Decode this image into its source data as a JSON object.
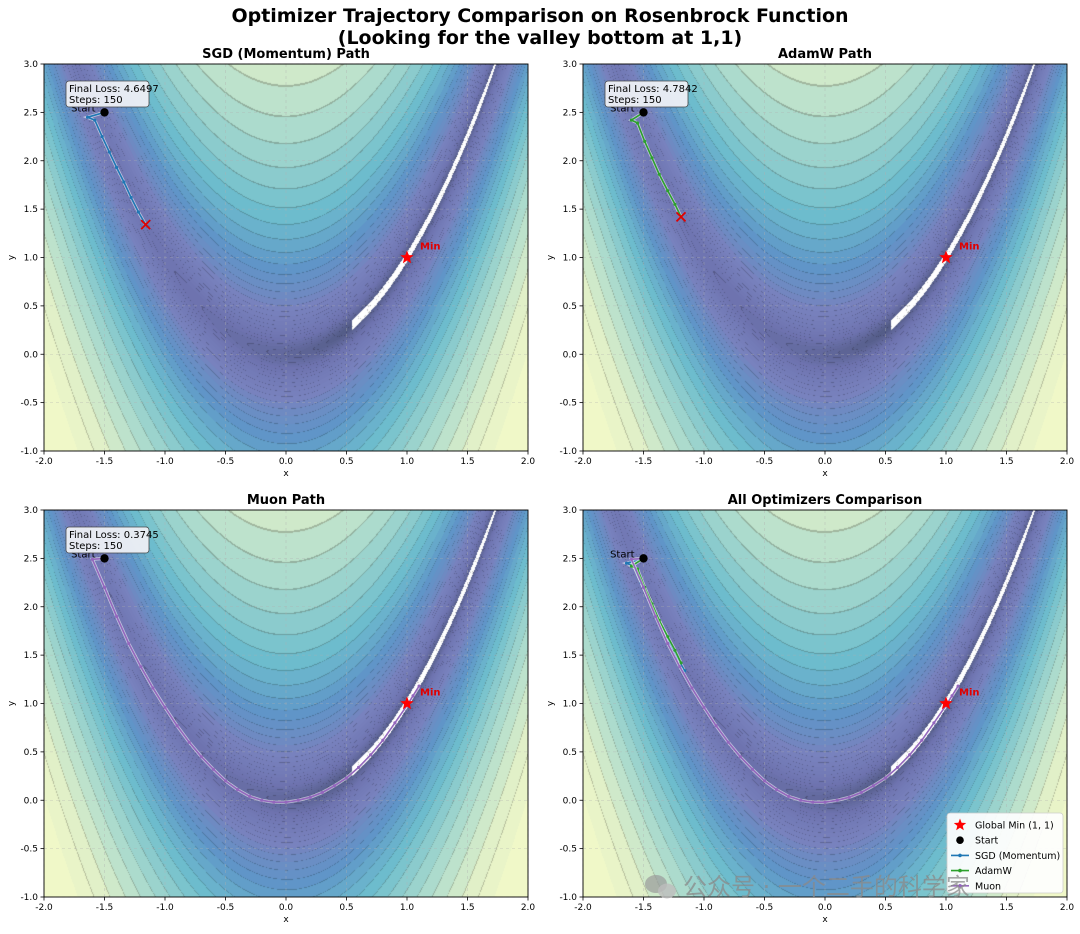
{
  "chart_data": {
    "type": "contour",
    "title_line1": "Optimizer Trajectory Comparison on Rosenbrock Function",
    "title_line2": "(Looking for the valley bottom at 1,1)",
    "function": "Rosenbrock",
    "xlim": [
      -2.0,
      2.0
    ],
    "ylim": [
      -1.0,
      3.0
    ],
    "x_ticks": [
      "-2.0",
      "-1.5",
      "-1.0",
      "-0.5",
      "0.0",
      "0.5",
      "1.0",
      "1.5",
      "2.0"
    ],
    "y_ticks": [
      "-1.0",
      "-0.5",
      "0.0",
      "0.5",
      "1.0",
      "1.5",
      "2.0",
      "2.5",
      "3.0"
    ],
    "xlabel": "x",
    "ylabel": "y",
    "grid": true,
    "start": {
      "x": -1.5,
      "y": 2.5,
      "label": "Start"
    },
    "global_min": {
      "x": 1.0,
      "y": 1.0,
      "label": "Min"
    },
    "panels": [
      {
        "title": "SGD (Momentum) Path",
        "series": [
          "sgd"
        ],
        "final_loss_text": "Final Loss: 4.6497",
        "steps_text": "Steps: 150"
      },
      {
        "title": "AdamW Path",
        "series": [
          "adamw"
        ],
        "final_loss_text": "Final Loss: 4.7842",
        "steps_text": "Steps: 150"
      },
      {
        "title": "Muon Path",
        "series": [
          "muon"
        ],
        "final_loss_text": "Final Loss: 0.3745",
        "steps_text": "Steps: 150"
      },
      {
        "title": "All Optimizers Comparison",
        "series": [
          "sgd",
          "adamw",
          "muon"
        ],
        "final_loss_text": "",
        "steps_text": "",
        "legend": [
          "Global Min (1, 1)",
          "Start",
          "SGD (Momentum)",
          "AdamW",
          "Muon"
        ],
        "legend_position": "lower-right"
      }
    ],
    "series": {
      "sgd": {
        "name": "SGD (Momentum)",
        "color": "#1f77b4",
        "end_marker": "x",
        "points": [
          [
            -1.5,
            2.5
          ],
          [
            -1.64,
            2.45
          ],
          [
            -1.58,
            2.42
          ],
          [
            -1.52,
            2.25
          ],
          [
            -1.46,
            2.09
          ],
          [
            -1.4,
            1.93
          ],
          [
            -1.34,
            1.78
          ],
          [
            -1.28,
            1.62
          ],
          [
            -1.22,
            1.47
          ],
          [
            -1.16,
            1.34
          ]
        ]
      },
      "adamw": {
        "name": "AdamW",
        "color": "#2ca02c",
        "end_marker": "x",
        "points": [
          [
            -1.5,
            2.5
          ],
          [
            -1.6,
            2.42
          ],
          [
            -1.55,
            2.39
          ],
          [
            -1.49,
            2.2
          ],
          [
            -1.43,
            2.03
          ],
          [
            -1.37,
            1.86
          ],
          [
            -1.3,
            1.69
          ],
          [
            -1.24,
            1.55
          ],
          [
            -1.19,
            1.42
          ]
        ]
      },
      "muon": {
        "name": "Muon",
        "color": "#9467bd",
        "end_marker": "x",
        "points": [
          [
            -1.5,
            2.5
          ],
          [
            -1.6,
            2.49
          ],
          [
            -1.5,
            2.2
          ],
          [
            -1.4,
            1.9
          ],
          [
            -1.3,
            1.62
          ],
          [
            -1.2,
            1.38
          ],
          [
            -1.1,
            1.16
          ],
          [
            -1.0,
            0.96
          ],
          [
            -0.9,
            0.77
          ],
          [
            -0.8,
            0.6
          ],
          [
            -0.7,
            0.45
          ],
          [
            -0.6,
            0.32
          ],
          [
            -0.5,
            0.2
          ],
          [
            -0.4,
            0.11
          ],
          [
            -0.3,
            0.04
          ],
          [
            -0.2,
            0.0
          ],
          [
            -0.1,
            -0.02
          ],
          [
            0.0,
            -0.02
          ],
          [
            0.1,
            0.0
          ],
          [
            0.2,
            0.03
          ],
          [
            0.3,
            0.08
          ],
          [
            0.4,
            0.15
          ],
          [
            0.5,
            0.23
          ],
          [
            0.6,
            0.34
          ],
          [
            0.7,
            0.47
          ],
          [
            0.8,
            0.62
          ],
          [
            0.9,
            0.8
          ],
          [
            1.0,
            0.98
          ],
          [
            1.05,
            1.08
          ],
          [
            1.1,
            1.18
          ]
        ]
      }
    }
  },
  "watermark": "公众号 · 一个二手的科学家"
}
